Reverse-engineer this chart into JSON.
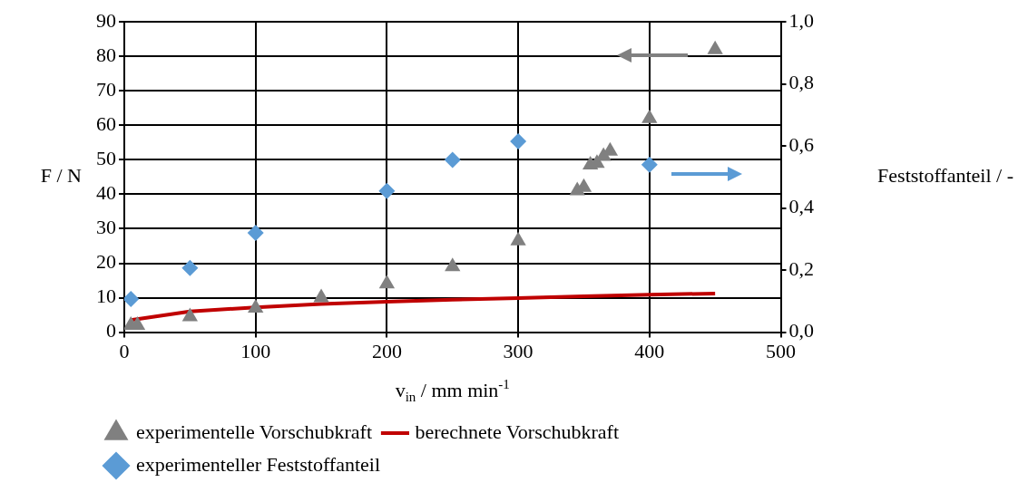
{
  "chart_data": {
    "type": "scatter",
    "xlabel": "v$_{in}$ / mm min$^{-1}$",
    "ylabel": "F / N",
    "y2label": "Feststoffanteil / -",
    "xlim": [
      0,
      500
    ],
    "xticks": [
      0,
      100,
      200,
      300,
      400,
      500
    ],
    "ylim": [
      0,
      90
    ],
    "yticks": [
      0,
      10,
      20,
      30,
      40,
      50,
      60,
      70,
      80,
      90
    ],
    "y2lim": [
      0,
      1
    ],
    "y2ticks": [
      {
        "value": 0,
        "label": "0,0"
      },
      {
        "value": 0.2,
        "label": "0,2"
      },
      {
        "value": 0.4,
        "label": "0,4"
      },
      {
        "value": 0.6,
        "label": "0,6"
      },
      {
        "value": 0.8,
        "label": "0,8"
      },
      {
        "value": 1,
        "label": "1,0"
      }
    ],
    "grid": true,
    "legend": "bottom",
    "series": [
      {
        "name": "experimentelle Vorschubkraft",
        "marker": "triangle",
        "color": "#808080",
        "x": [
          5,
          10,
          50,
          100,
          150,
          200,
          250,
          300,
          345,
          350,
          355,
          360,
          365,
          370,
          400,
          450
        ],
        "values": [
          2,
          2,
          4.5,
          7,
          10,
          14,
          19,
          26.5,
          41,
          42,
          48.5,
          49,
          51,
          52.5,
          62,
          82
        ]
      },
      {
        "name": "berechnete Vorschubkraft",
        "type": "line",
        "marker": "none",
        "color": "#c00000",
        "x": [
          5,
          50,
          100,
          150,
          200,
          250,
          300,
          350,
          400,
          450
        ],
        "values": [
          3.5,
          6,
          7.2,
          8.2,
          8.8,
          9.4,
          9.9,
          10.4,
          10.9,
          11.2
        ]
      },
      {
        "name": "experimenteller Feststoffanteil",
        "marker": "diamond",
        "axis": "y2",
        "color": "#5b9bd5",
        "x": [
          5,
          50,
          100,
          200,
          250,
          300,
          400
        ],
        "values": [
          0.107,
          0.207,
          0.32,
          0.455,
          0.555,
          0.615,
          0.54
        ]
      }
    ]
  }
}
